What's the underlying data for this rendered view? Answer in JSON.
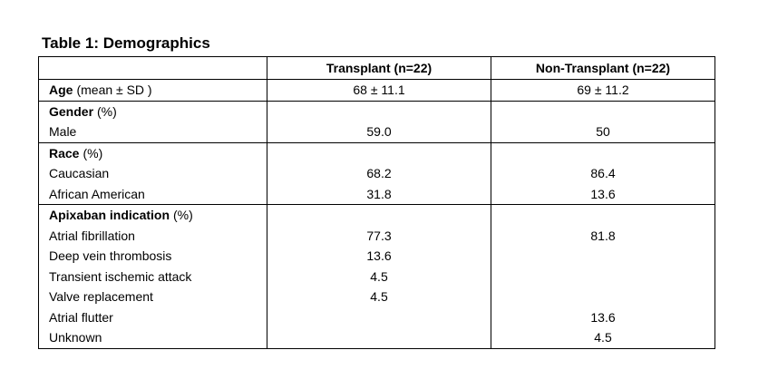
{
  "title": "Table 1: Demographics",
  "table": {
    "header": [
      "Transplant (n=22)",
      "Non-Transplant (n=22)"
    ],
    "sections": [
      {
        "heading": {
          "bold": "Age",
          "rest": "(mean ± SD )"
        },
        "values": [
          "68 ± 11.1",
          "69 ± 11.2"
        ],
        "rows": []
      },
      {
        "heading": {
          "bold": "Gender",
          "rest": "(%)"
        },
        "values": null,
        "rows": [
          {
            "label": "Male",
            "values": [
              "59.0",
              "50"
            ]
          }
        ]
      },
      {
        "heading": {
          "bold": "Race",
          "rest": "(%)"
        },
        "values": null,
        "rows": [
          {
            "label": "Caucasian",
            "values": [
              "68.2",
              "86.4"
            ]
          },
          {
            "label": "African American",
            "values": [
              "31.8",
              "13.6"
            ]
          }
        ]
      },
      {
        "heading": {
          "bold": "Apixaban indication",
          "rest": "(%)"
        },
        "values": null,
        "rows": [
          {
            "label": "Atrial fibrillation",
            "values": [
              "77.3",
              "81.8"
            ]
          },
          {
            "label": "Deep vein thrombosis",
            "values": [
              "13.6",
              null
            ]
          },
          {
            "label": "Transient ischemic attack",
            "values": [
              "4.5",
              null
            ]
          },
          {
            "label": "Valve replacement",
            "values": [
              "4.5",
              null
            ]
          },
          {
            "label": "Atrial flutter",
            "values": [
              null,
              "13.6"
            ]
          },
          {
            "label": "Unknown",
            "values": [
              null,
              "4.5"
            ]
          }
        ]
      }
    ]
  }
}
